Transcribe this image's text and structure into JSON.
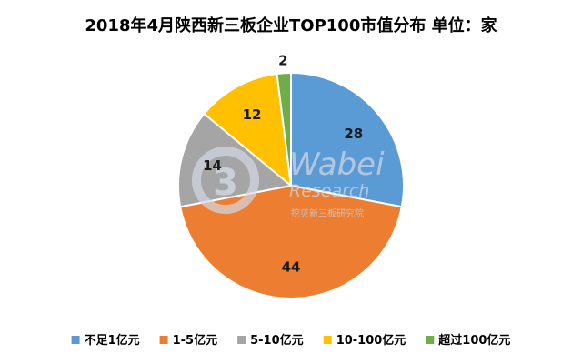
{
  "chart_data": {
    "type": "pie",
    "title": "2018年4月陕西新三板企业TOP100市值分布 单位：家",
    "categories": [
      "不足1亿元",
      "1-5亿元",
      "5-10亿元",
      "10-100亿元",
      "超过100亿元"
    ],
    "values": [
      28,
      44,
      14,
      12,
      2
    ],
    "colors": [
      "#5B9BD5",
      "#ED7D31",
      "#A5A5A5",
      "#FFC000",
      "#70AD47"
    ],
    "data_labels": true,
    "legend": "bottom"
  },
  "watermark": {
    "brand": "Wabei",
    "sub": "Research",
    "chinese": "挖贝新三板研究院"
  }
}
